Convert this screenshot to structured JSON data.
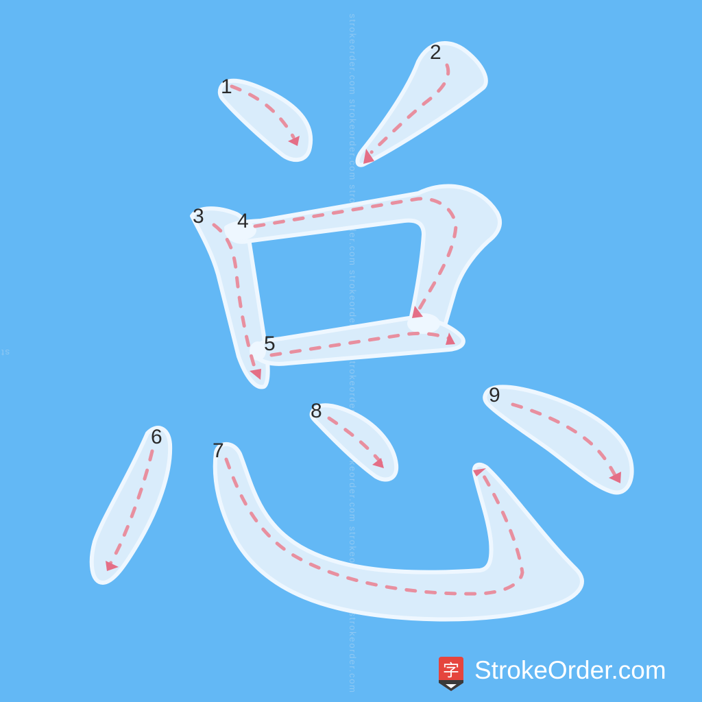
{
  "character": "总",
  "stroke_count": 9,
  "stroke_numbers": [
    "1",
    "2",
    "3",
    "4",
    "5",
    "6",
    "7",
    "8",
    "9"
  ],
  "watermark": "strokeorder.com",
  "brand": {
    "logo_glyph": "字",
    "name": "StrokeOrder.com"
  },
  "colors": {
    "background": "#63b8f5",
    "stroke_fill": "#d9ecfb",
    "guide": "#e88f9f",
    "logo_red": "#e5453e"
  }
}
